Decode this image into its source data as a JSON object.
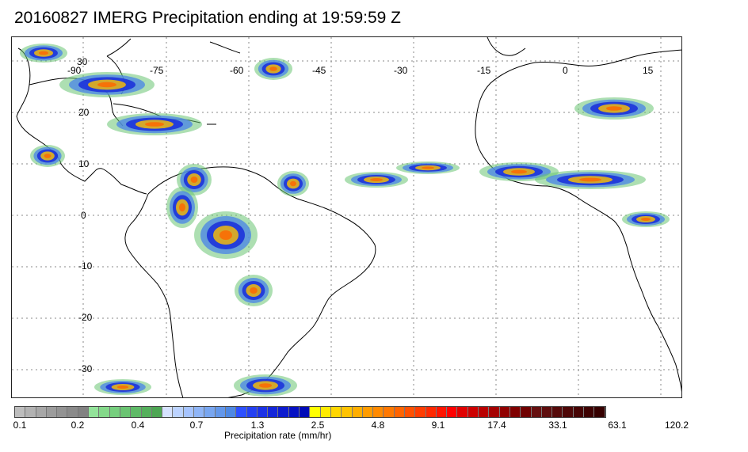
{
  "title": "20160827 IMERG Precipitation ending at 19:59:59 Z",
  "map": {
    "projection": "lat-lon",
    "lon_labels": [
      "-90",
      "-75",
      "-60",
      "-45",
      "-30",
      "-15",
      "0",
      "15"
    ],
    "lat_labels": [
      "30",
      "20",
      "10",
      "0",
      "-10",
      "-20",
      "-30"
    ],
    "grid": "dotted"
  },
  "colorbar": {
    "label": "Precipitation rate (mm/hr)",
    "ticks": [
      "0.1",
      "0.2",
      "0.4",
      "0.7",
      "1.3",
      "2.5",
      "4.8",
      "9.1",
      "17.4",
      "33.1",
      "63.1",
      "120.2"
    ],
    "colors": [
      "#bdbdbd",
      "#b2b2b2",
      "#a7a7a7",
      "#9c9c9c",
      "#939393",
      "#8a8a8a",
      "#828282",
      "#93e39a",
      "#84d98a",
      "#76cf7e",
      "#6ac472",
      "#5fba67",
      "#55b05c",
      "#4da653",
      "#d6e2ff",
      "#bcd3ff",
      "#a6c4ff",
      "#8fb5f7",
      "#78a6f0",
      "#6397ea",
      "#4e88e3",
      "#2d50ff",
      "#2440f2",
      "#1c32e6",
      "#1426da",
      "#0d1bcf",
      "#0712c4",
      "#000ab8",
      "#ffff00",
      "#ffeb00",
      "#ffd700",
      "#ffc300",
      "#ffae00",
      "#ff9c00",
      "#ff8a00",
      "#ff7800",
      "#ff6400",
      "#ff5000",
      "#ff3c00",
      "#ff2800",
      "#ff1400",
      "#ff0000",
      "#e10000",
      "#cd0000",
      "#b90000",
      "#a50000",
      "#910000",
      "#800000",
      "#700000",
      "#661010",
      "#5e0d0d",
      "#560a0a",
      "#4e0707",
      "#460404",
      "#3e0202",
      "#360000"
    ]
  }
}
